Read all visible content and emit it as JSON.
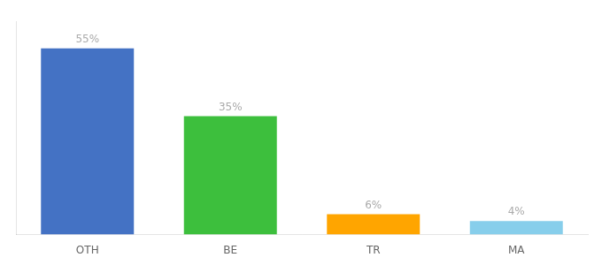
{
  "chart_data": {
    "type": "bar",
    "categories": [
      "OTH",
      "BE",
      "TR",
      "MA"
    ],
    "values": [
      55,
      35,
      6,
      4
    ],
    "value_labels": [
      "55%",
      "35%",
      "6%",
      "4%"
    ],
    "colors": [
      "#4472C4",
      "#3DBF3D",
      "#FFA500",
      "#87CEEB"
    ],
    "ylim": [
      0,
      63
    ],
    "grid": false,
    "data_labels": true,
    "tick_labels": "x"
  }
}
